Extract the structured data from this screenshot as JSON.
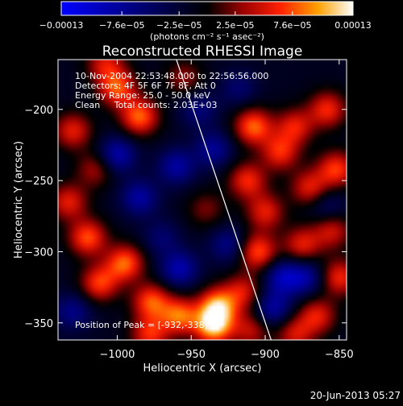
{
  "chart_data": {
    "type": "heatmap",
    "title": "Reconstructed RHESSI Image",
    "xlabel": "Heliocentric X (arcsec)",
    "ylabel": "Heliocentric Y (arcsec)",
    "xlim": [
      -1040,
      -845
    ],
    "ylim": [
      -362,
      -165
    ],
    "xticks": [
      -1000,
      -950,
      -900,
      -850
    ],
    "xtick_labels": [
      "−1000",
      "−950",
      "−900",
      "−850"
    ],
    "yticks": [
      -200,
      -250,
      -300,
      -350
    ],
    "ytick_labels": [
      "−200",
      "−250",
      "−300",
      "−350"
    ],
    "colorbar": {
      "min": -0.00013,
      "max": 0.00013,
      "ticks": [
        -0.00013,
        -7.6e-05,
        -2.5e-05,
        2.5e-05,
        7.6e-05,
        0.00013
      ],
      "tick_labels": [
        "−0.00013",
        "−7.6e−05",
        "−2.5e−05",
        "2.5e−05",
        "7.6e−05",
        "0.00013"
      ],
      "units": "(photons cm⁻² s⁻¹ asec⁻²)"
    },
    "annotations": [
      "10-Nov-2004 22:53:48.000 to 22:56:56.000",
      "Detectors: 4F 5F 6F 7F 8F, Att 0",
      "Energy Range: 25.0 - 50.0 keV",
      "Clean     Total counts: 2.03E+03"
    ],
    "peak_label": "Position of Peak = [-932,-338]",
    "peak": [
      -932,
      -338
    ],
    "limb_line": {
      "x": [
        -960,
        -896
      ],
      "y": [
        -165,
        -362
      ]
    },
    "sources": [
      {
        "x": -935,
        "y": -352,
        "amp": 1.0
      },
      {
        "x": -932,
        "y": -338,
        "amp": 0.85
      },
      {
        "x": -915,
        "y": -328,
        "amp": 0.5
      },
      {
        "x": -958,
        "y": -345,
        "amp": 0.75
      },
      {
        "x": -977,
        "y": -335,
        "amp": 0.7
      },
      {
        "x": -978,
        "y": -358,
        "amp": 0.6
      },
      {
        "x": -995,
        "y": -308,
        "amp": 0.75
      },
      {
        "x": -1012,
        "y": -322,
        "amp": 0.65
      },
      {
        "x": -1020,
        "y": -290,
        "amp": 0.7
      },
      {
        "x": -1033,
        "y": -265,
        "amp": 0.55
      },
      {
        "x": -1000,
        "y": -185,
        "amp": 0.7
      },
      {
        "x": -985,
        "y": -205,
        "amp": 0.75
      },
      {
        "x": -1030,
        "y": -215,
        "amp": 0.55
      },
      {
        "x": -1015,
        "y": -242,
        "amp": 0.4
      },
      {
        "x": -955,
        "y": -178,
        "amp": 0.35
      },
      {
        "x": -908,
        "y": -212,
        "amp": 0.75
      },
      {
        "x": -890,
        "y": -230,
        "amp": 0.6
      },
      {
        "x": -880,
        "y": -212,
        "amp": 0.55
      },
      {
        "x": -858,
        "y": -200,
        "amp": 0.6
      },
      {
        "x": -852,
        "y": -242,
        "amp": 0.65
      },
      {
        "x": -870,
        "y": -255,
        "amp": 0.55
      },
      {
        "x": -912,
        "y": -250,
        "amp": 0.6
      },
      {
        "x": -900,
        "y": -272,
        "amp": 0.55
      },
      {
        "x": -905,
        "y": -300,
        "amp": 0.7
      },
      {
        "x": -875,
        "y": -295,
        "amp": 0.55
      },
      {
        "x": -855,
        "y": -285,
        "amp": 0.5
      },
      {
        "x": -850,
        "y": -318,
        "amp": 0.6
      },
      {
        "x": -865,
        "y": -345,
        "amp": 0.55
      },
      {
        "x": -880,
        "y": -358,
        "amp": 0.5
      },
      {
        "x": -910,
        "y": -355,
        "amp": 0.45
      },
      {
        "x": -940,
        "y": -270,
        "amp": 0.3
      },
      {
        "x": -1008,
        "y": -168,
        "amp": 0.5
      },
      {
        "x": -1000,
        "y": -232,
        "amp": -0.55
      },
      {
        "x": -985,
        "y": -262,
        "amp": -0.5
      },
      {
        "x": -960,
        "y": -240,
        "amp": -0.5
      },
      {
        "x": -935,
        "y": -228,
        "amp": -0.45
      },
      {
        "x": -958,
        "y": -312,
        "amp": -0.55
      },
      {
        "x": -925,
        "y": -295,
        "amp": -0.4
      },
      {
        "x": -888,
        "y": -318,
        "amp": -0.55
      },
      {
        "x": -895,
        "y": -340,
        "amp": -0.5
      },
      {
        "x": -872,
        "y": -318,
        "amp": -0.45
      },
      {
        "x": -1030,
        "y": -342,
        "amp": -0.4
      },
      {
        "x": -945,
        "y": -200,
        "amp": -0.35
      },
      {
        "x": -858,
        "y": -268,
        "amp": -0.3
      },
      {
        "x": -918,
        "y": -185,
        "amp": -0.3
      },
      {
        "x": -970,
        "y": -290,
        "amp": -0.3
      }
    ]
  },
  "footer": {
    "timestamp": "20-Jun-2013 05:27"
  }
}
